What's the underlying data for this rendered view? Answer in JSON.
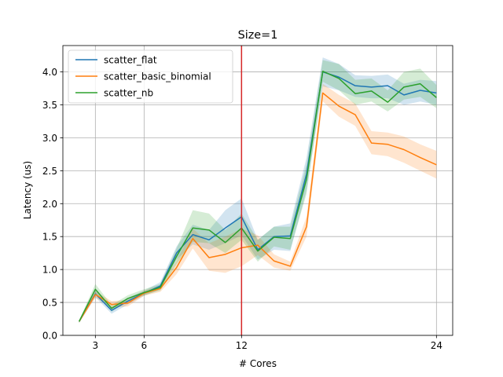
{
  "chart_data": {
    "type": "line",
    "title": "Size=1",
    "xlabel": "# Cores",
    "ylabel": "Latency (us)",
    "xlim": [
      1,
      25
    ],
    "ylim": [
      0,
      4.4
    ],
    "xticks": [
      3,
      6,
      12,
      24
    ],
    "yticks": [
      0.0,
      0.5,
      1.0,
      1.5,
      2.0,
      2.5,
      3.0,
      3.5,
      4.0
    ],
    "ytick_labels": [
      "0.0",
      "0.5",
      "1.0",
      "1.5",
      "2.0",
      "2.5",
      "3.0",
      "3.5",
      "4.0"
    ],
    "grid": true,
    "legend_position": "top-left",
    "vline": {
      "x": 12,
      "color": "#d62728"
    },
    "x": [
      2,
      3,
      4,
      5,
      6,
      7,
      8,
      9,
      10,
      11,
      12,
      13,
      14,
      15,
      16,
      17,
      18,
      19,
      20,
      21,
      22,
      23,
      24
    ],
    "series": [
      {
        "name": "scatter_flat",
        "color": "#1f77b4",
        "values": [
          0.21,
          0.63,
          0.38,
          0.52,
          0.64,
          0.75,
          1.25,
          1.53,
          1.45,
          1.63,
          1.8,
          1.3,
          1.5,
          1.51,
          2.45,
          4.0,
          3.92,
          3.79,
          3.77,
          3.79,
          3.65,
          3.72,
          3.68
        ],
        "lower": [
          0.19,
          0.58,
          0.33,
          0.47,
          0.6,
          0.7,
          1.15,
          1.38,
          1.3,
          1.4,
          1.52,
          1.15,
          1.3,
          1.28,
          2.2,
          3.78,
          3.72,
          3.62,
          3.6,
          3.6,
          3.5,
          3.55,
          3.5
        ],
        "upper": [
          0.23,
          0.68,
          0.43,
          0.57,
          0.68,
          0.81,
          1.35,
          1.68,
          1.6,
          1.9,
          2.08,
          1.45,
          1.65,
          1.7,
          2.7,
          4.22,
          4.12,
          3.95,
          3.94,
          3.96,
          3.82,
          3.88,
          3.86
        ]
      },
      {
        "name": "scatter_basic_binomial",
        "color": "#ff7f0e",
        "values": [
          0.21,
          0.62,
          0.47,
          0.49,
          0.64,
          0.71,
          1.03,
          1.47,
          1.18,
          1.23,
          1.33,
          1.37,
          1.13,
          1.05,
          1.65,
          3.68,
          3.48,
          3.35,
          2.92,
          2.9,
          2.82,
          2.7,
          2.59
        ],
        "lower": [
          0.19,
          0.57,
          0.42,
          0.44,
          0.6,
          0.66,
          0.93,
          1.32,
          0.98,
          0.95,
          1.05,
          1.22,
          1.03,
          0.98,
          1.5,
          3.55,
          3.32,
          3.18,
          2.75,
          2.72,
          2.62,
          2.5,
          2.38
        ],
        "upper": [
          0.23,
          0.67,
          0.52,
          0.54,
          0.68,
          0.76,
          1.13,
          1.62,
          1.4,
          1.5,
          1.62,
          1.52,
          1.23,
          1.12,
          1.8,
          3.82,
          3.65,
          3.52,
          3.1,
          3.08,
          3.02,
          2.9,
          2.8
        ]
      },
      {
        "name": "scatter_nb",
        "color": "#2ca02c",
        "values": [
          0.21,
          0.7,
          0.41,
          0.56,
          0.65,
          0.73,
          1.2,
          1.63,
          1.6,
          1.41,
          1.63,
          1.28,
          1.49,
          1.47,
          2.37,
          4.01,
          3.9,
          3.67,
          3.71,
          3.54,
          3.77,
          3.82,
          3.61
        ],
        "lower": [
          0.19,
          0.64,
          0.36,
          0.51,
          0.61,
          0.68,
          1.08,
          1.42,
          1.4,
          1.25,
          1.45,
          1.12,
          1.35,
          1.3,
          2.15,
          3.85,
          3.72,
          3.5,
          3.55,
          3.4,
          3.58,
          3.62,
          3.45
        ],
        "upper": [
          0.23,
          0.78,
          0.46,
          0.61,
          0.7,
          0.78,
          1.32,
          1.9,
          1.85,
          1.6,
          1.85,
          1.45,
          1.65,
          1.65,
          2.6,
          4.18,
          4.12,
          3.88,
          3.9,
          3.72,
          4.0,
          4.05,
          3.8
        ]
      }
    ]
  }
}
